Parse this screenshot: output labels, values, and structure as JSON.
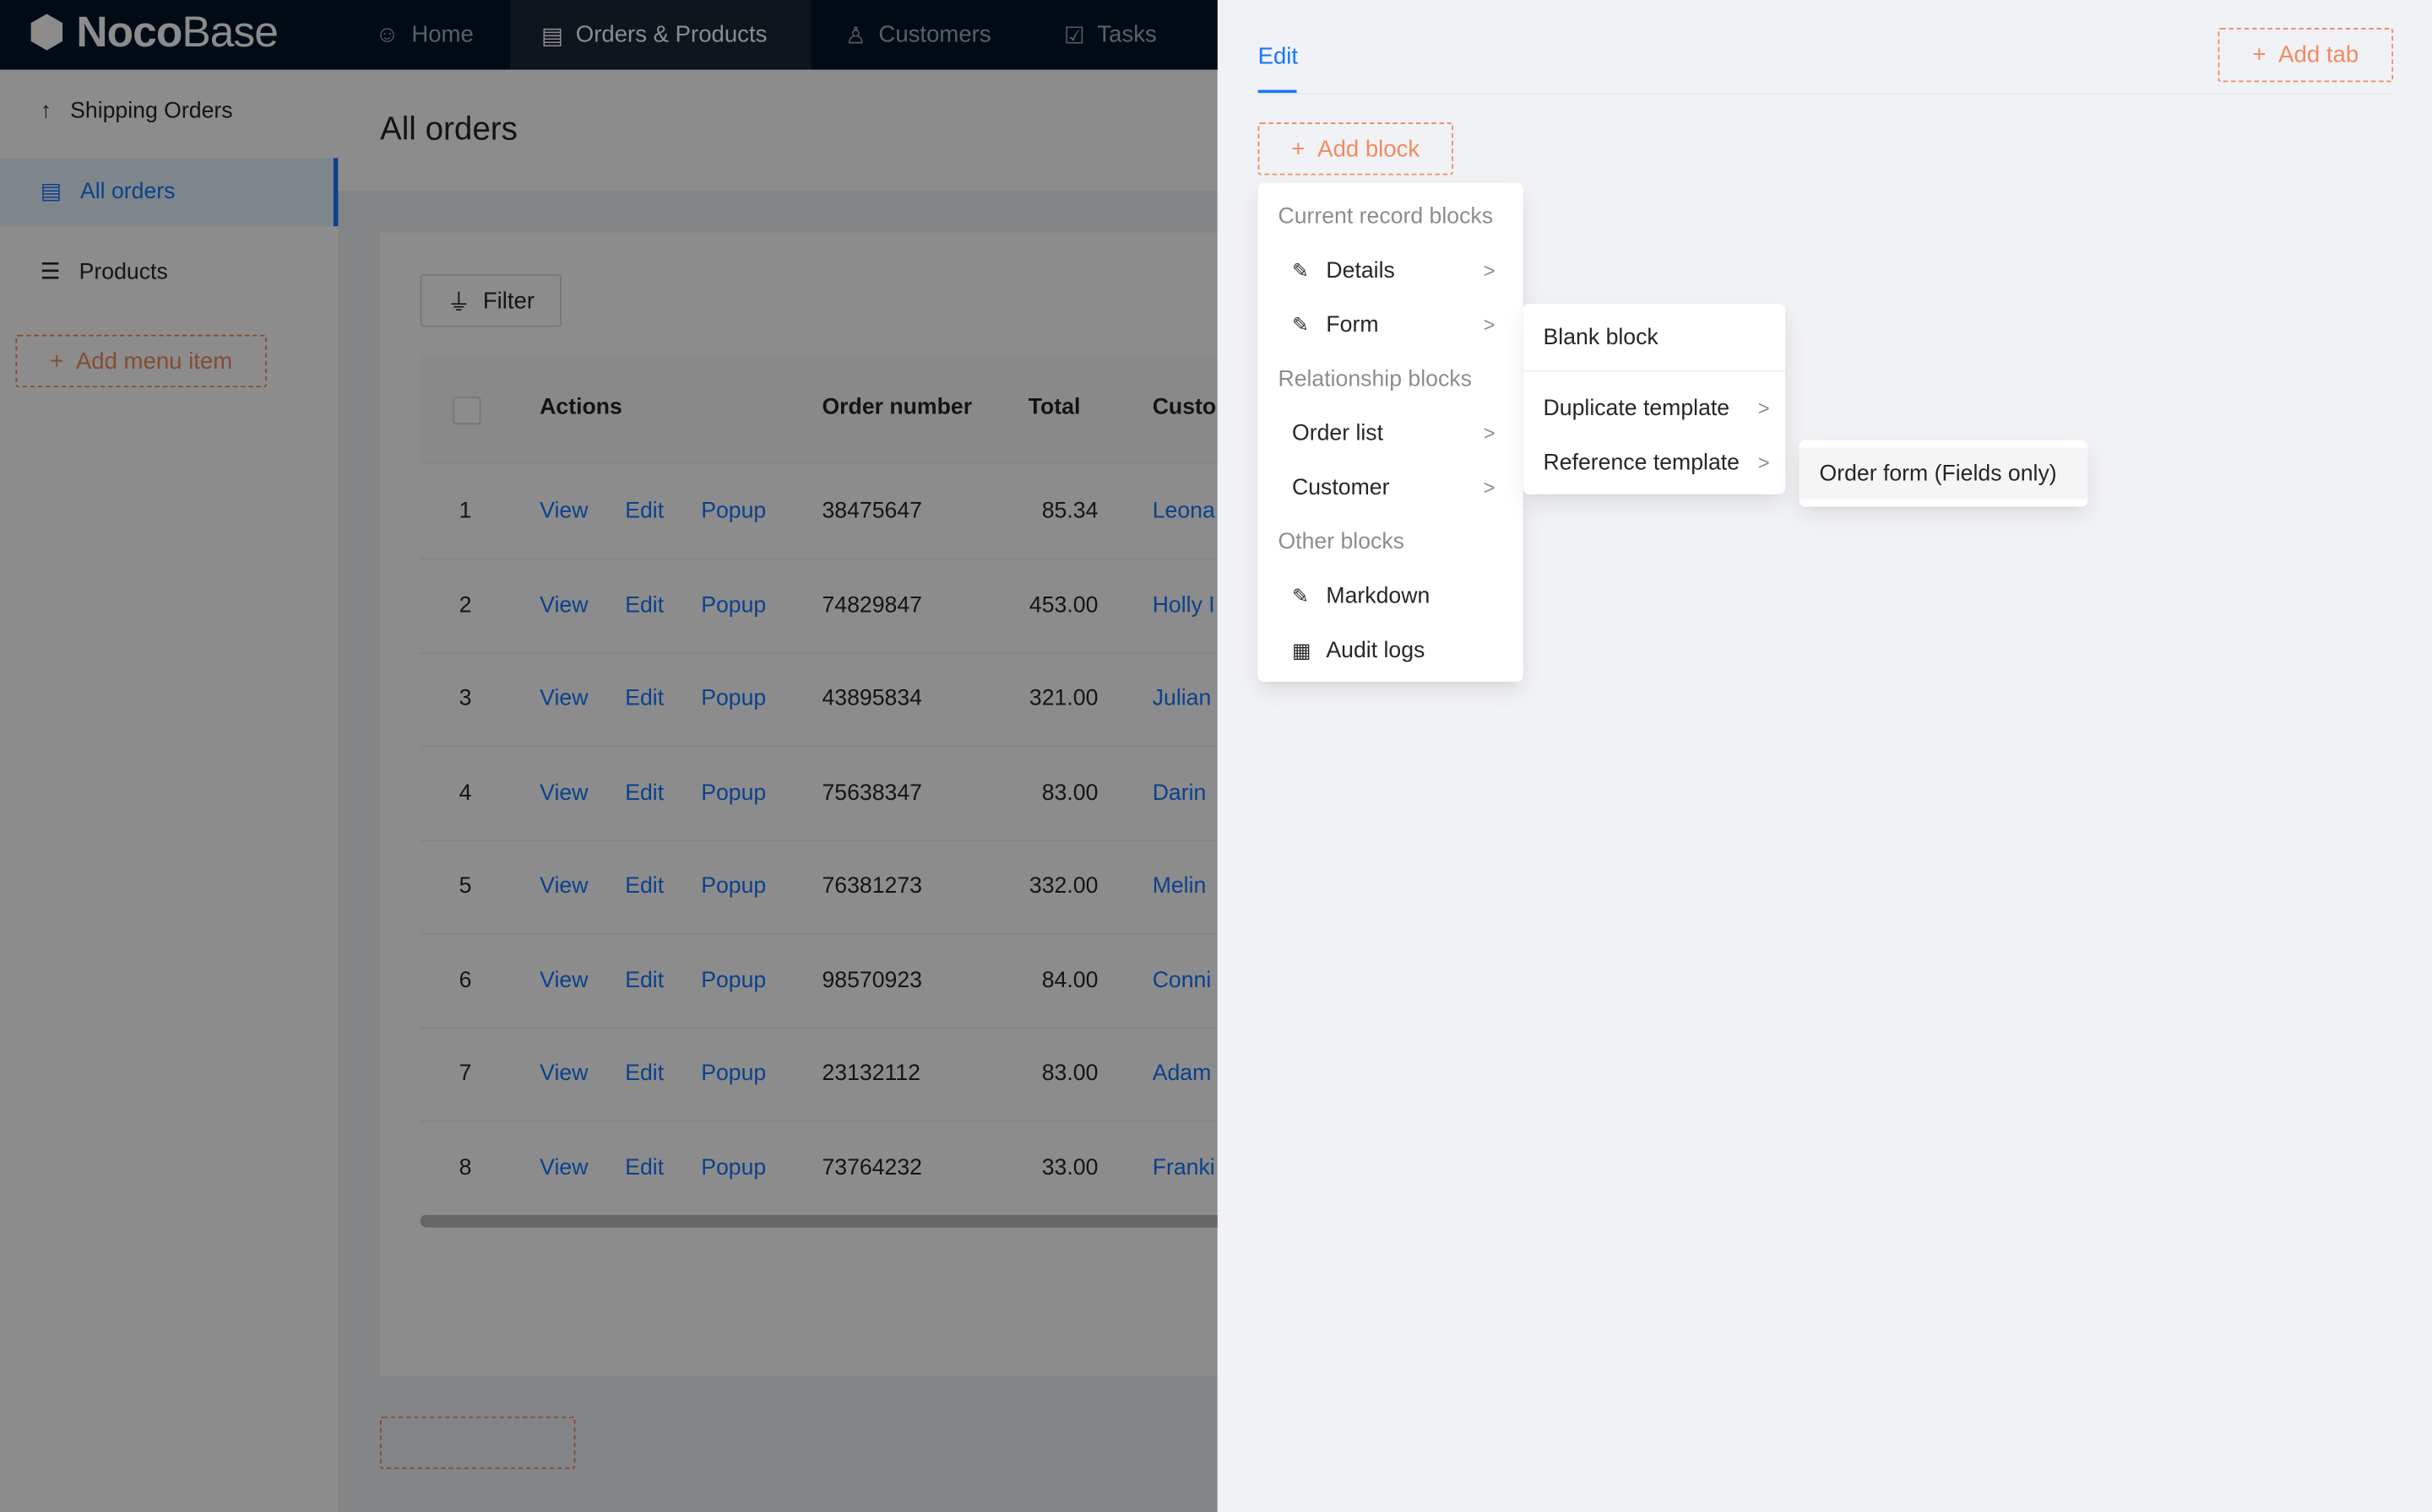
{
  "brand": {
    "name_bold": "Noco",
    "name_light": "Base"
  },
  "topnav": [
    {
      "label": "Home",
      "icon": "smile-icon"
    },
    {
      "label": "Orders & Products",
      "icon": "file-check-icon",
      "active": true
    },
    {
      "label": "Customers",
      "icon": "user-icon"
    },
    {
      "label": "Tasks",
      "icon": "checkbox-icon"
    }
  ],
  "sidebar": {
    "items": [
      {
        "label": "Shipping Orders",
        "icon": "arrow-up-icon"
      },
      {
        "label": "All orders",
        "icon": "file-check-icon",
        "selected": true
      },
      {
        "label": "Products",
        "icon": "list-icon"
      }
    ],
    "add_label": "Add menu item"
  },
  "page": {
    "title": "All orders",
    "filter_label": "Filter",
    "columns": [
      "Actions",
      "Order number",
      "Total",
      "Custo"
    ],
    "action_links": [
      "View",
      "Edit",
      "Popup"
    ],
    "rows": [
      {
        "n": "1",
        "order": "38475647",
        "total": "85.34",
        "customer": "Leona"
      },
      {
        "n": "2",
        "order": "74829847",
        "total": "453.00",
        "customer": "Holly I"
      },
      {
        "n": "3",
        "order": "43895834",
        "total": "321.00",
        "customer": "Julian"
      },
      {
        "n": "4",
        "order": "75638347",
        "total": "83.00",
        "customer": "Darin"
      },
      {
        "n": "5",
        "order": "76381273",
        "total": "332.00",
        "customer": "Melin"
      },
      {
        "n": "6",
        "order": "98570923",
        "total": "84.00",
        "customer": "Conni"
      },
      {
        "n": "7",
        "order": "23132112",
        "total": "83.00",
        "customer": "Adam"
      },
      {
        "n": "8",
        "order": "73764232",
        "total": "33.00",
        "customer": "Franki"
      }
    ]
  },
  "drawer": {
    "tab": "Edit",
    "add_tab": "Add tab",
    "add_block": "Add block",
    "menu": {
      "group1": "Current record blocks",
      "details": "Details",
      "form": "Form",
      "group2": "Relationship blocks",
      "order_list": "Order list",
      "customer": "Customer",
      "group3": "Other blocks",
      "markdown": "Markdown",
      "audit_logs": "Audit logs"
    },
    "submenu": {
      "blank": "Blank block",
      "duplicate": "Duplicate template",
      "reference": "Reference template"
    },
    "submenu2": {
      "order_form": "Order form (Fields only)"
    }
  },
  "colors": {
    "accent": "#1677ff",
    "dashed": "#f18b62",
    "header": "#001529"
  }
}
